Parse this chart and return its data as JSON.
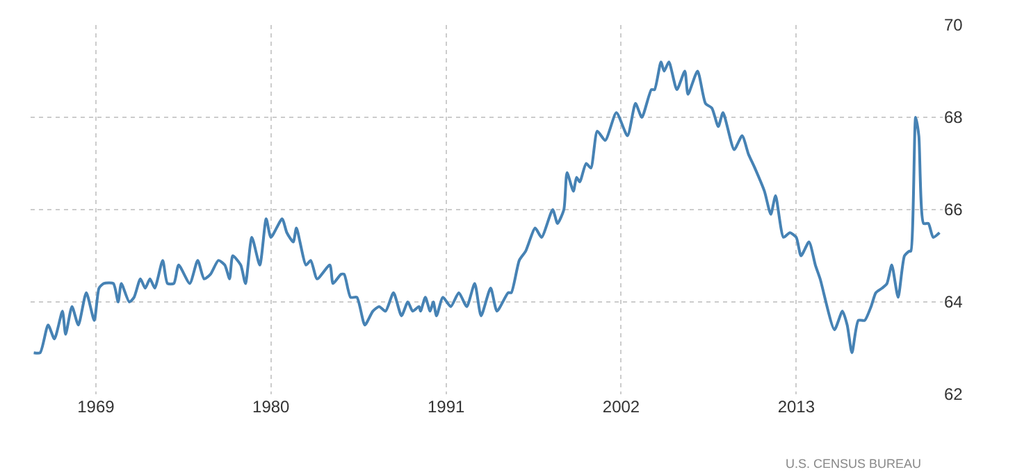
{
  "chart_data": {
    "type": "line",
    "x": [
      1965.1,
      1965.5,
      1966.0,
      1966.4,
      1966.9,
      1967.1,
      1967.5,
      1967.9,
      1968.4,
      1968.9,
      1969.2,
      1969.5,
      1970.1,
      1970.4,
      1970.6,
      1971.1,
      1971.4,
      1971.8,
      1972.1,
      1972.4,
      1972.7,
      1973.2,
      1973.5,
      1973.9,
      1974.2,
      1974.9,
      1975.4,
      1975.8,
      1976.2,
      1976.7,
      1977.1,
      1977.4,
      1977.6,
      1978.1,
      1978.4,
      1978.8,
      1979.3,
      1979.7,
      1980.0,
      1980.7,
      1981.0,
      1981.4,
      1981.6,
      1982.2,
      1982.5,
      1982.9,
      1983.7,
      1983.9,
      1984.4,
      1984.6,
      1985.0,
      1985.4,
      1985.9,
      1986.4,
      1986.8,
      1987.2,
      1987.7,
      1988.2,
      1988.6,
      1988.9,
      1989.3,
      1989.4,
      1989.7,
      1990.0,
      1990.2,
      1990.4,
      1990.8,
      1991.3,
      1991.8,
      1992.3,
      1992.8,
      1993.2,
      1993.8,
      1994.2,
      1994.9,
      1995.1,
      1995.6,
      1996.0,
      1996.6,
      1997.0,
      1997.7,
      1998.0,
      1998.4,
      1998.6,
      1999.0,
      1999.2,
      1999.4,
      1999.8,
      2000.1,
      2000.5,
      2001.0,
      2001.7,
      2002.4,
      2002.9,
      2003.3,
      2003.9,
      2004.1,
      2004.5,
      2004.7,
      2005.0,
      2005.5,
      2006.0,
      2006.2,
      2006.8,
      2007.3,
      2007.7,
      2008.1,
      2008.4,
      2009.1,
      2009.6,
      2010.0,
      2010.4,
      2011.0,
      2011.4,
      2011.7,
      2012.2,
      2012.6,
      2013.0,
      2013.3,
      2013.8,
      2014.2,
      2014.5,
      2015.4,
      2015.9,
      2016.2,
      2016.5,
      2016.9,
      2017.3,
      2017.7,
      2018.0,
      2018.4,
      2018.7,
      2019.0,
      2019.4,
      2019.8,
      2020.1,
      2020.2,
      2020.5,
      2020.7,
      2021.0,
      2021.3,
      2021.6,
      2022.0
    ],
    "series": [
      {
        "color": "#4682b4",
        "values": [
          62.9,
          62.9,
          63.5,
          63.2,
          63.8,
          63.3,
          63.9,
          63.5,
          64.2,
          63.6,
          64.3,
          64.4,
          64.4,
          64.0,
          64.4,
          64.0,
          64.1,
          64.5,
          64.3,
          64.5,
          64.3,
          64.9,
          64.4,
          64.4,
          64.8,
          64.4,
          64.9,
          64.5,
          64.6,
          64.9,
          64.8,
          64.5,
          65.0,
          64.8,
          64.4,
          65.4,
          64.8,
          65.8,
          65.4,
          65.8,
          65.5,
          65.3,
          65.6,
          64.8,
          64.9,
          64.5,
          64.8,
          64.4,
          64.6,
          64.6,
          64.1,
          64.1,
          63.5,
          63.8,
          63.9,
          63.8,
          64.2,
          63.7,
          64.0,
          63.8,
          63.9,
          63.8,
          64.1,
          63.8,
          64.0,
          63.7,
          64.1,
          63.9,
          64.2,
          63.9,
          64.4,
          63.7,
          64.3,
          63.8,
          64.2,
          64.2,
          64.9,
          65.1,
          65.6,
          65.4,
          66.0,
          65.7,
          66.0,
          66.8,
          66.4,
          66.7,
          66.6,
          67.0,
          66.9,
          67.7,
          67.5,
          68.1,
          67.6,
          68.3,
          68.0,
          68.6,
          68.6,
          69.2,
          69.0,
          69.2,
          68.6,
          69.0,
          68.5,
          69.0,
          68.3,
          68.2,
          67.8,
          68.1,
          67.3,
          67.6,
          67.2,
          66.9,
          66.4,
          65.9,
          66.3,
          65.4,
          65.5,
          65.4,
          65.0,
          65.3,
          64.8,
          64.5,
          63.4,
          63.8,
          63.5,
          62.9,
          63.6,
          63.6,
          63.9,
          64.2,
          64.3,
          64.4,
          64.8,
          64.1,
          65.0,
          65.1,
          65.1,
          68.0,
          67.6,
          65.7,
          65.7,
          65.4,
          65.5
        ]
      }
    ],
    "xlim": [
      1964.9,
      2022.2
    ],
    "xticks": [
      1969,
      1980,
      1991,
      2002,
      2013
    ],
    "ylim": [
      62,
      70
    ],
    "yticks": [
      62,
      64,
      66,
      68,
      70
    ],
    "grid": true,
    "line_style": "solid",
    "annotations": [
      "U.S. CENSUS BUREAU"
    ]
  }
}
